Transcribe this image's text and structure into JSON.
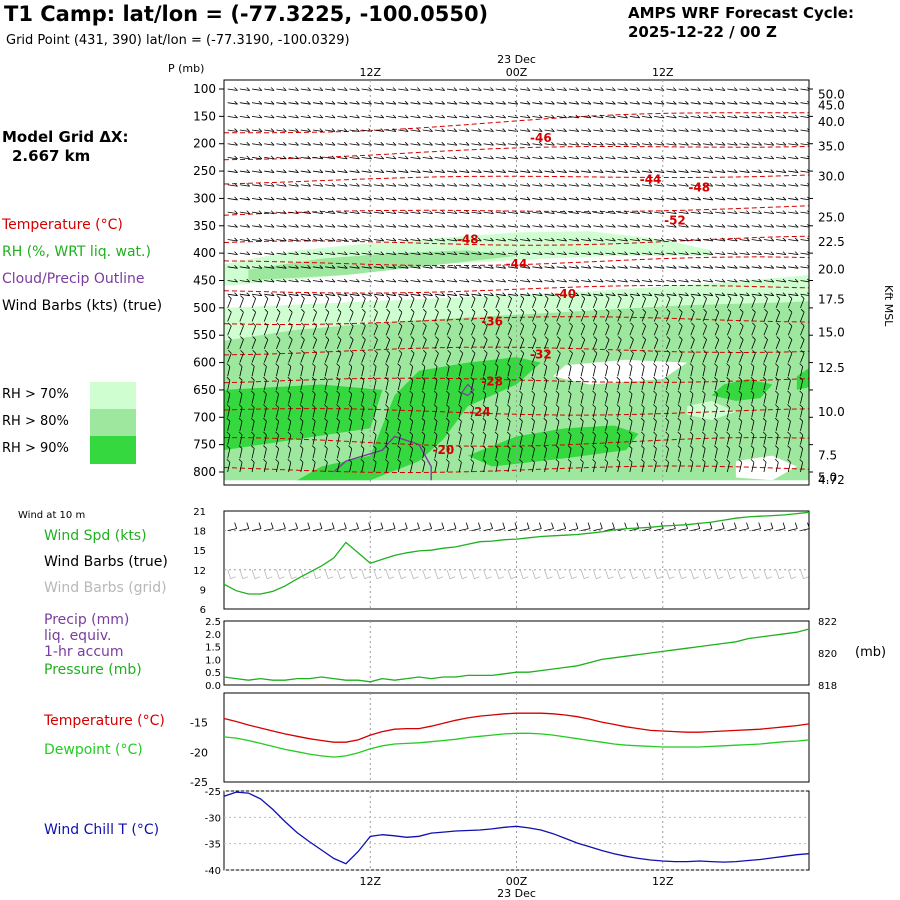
{
  "header": {
    "title": "T1 Camp:  lat/lon = (-77.3225, -100.0550)",
    "grid_point": "Grid Point (431, 390) lat/lon = (-77.3190, -100.0329)",
    "cycle_line1": "AMPS WRF Forecast Cycle:",
    "cycle_line2": "2025-12-22 / 00  Z",
    "model_grid_label": "Model Grid ΔX:",
    "model_grid_value": "2.667 km"
  },
  "legend": {
    "temperature": "Temperature (°C)",
    "rh": "RH (%, WRT liq. wat.)",
    "cloud": "Cloud/Precip Outline",
    "barbs": "Wind Barbs (kts) (true)",
    "rh_levels": [
      {
        "label": "RH > 70%",
        "color": "#cfffd0"
      },
      {
        "label": "RH > 80%",
        "color": "#9de89e"
      },
      {
        "label": "RH > 90%",
        "color": "#35d83f"
      }
    ]
  },
  "colors": {
    "temperature": "#d40000",
    "rh": "#1fb01f",
    "cloud": "#7a3c9e",
    "wind_chill": "#1010b0",
    "dewpoint": "#22cc22",
    "grid_barbs": "#b8b8b8"
  },
  "time_axis": {
    "date_label": "23 Dec",
    "ticks": [
      "12Z",
      "00Z",
      "12Z"
    ]
  },
  "chart_data": [
    {
      "type": "heatmap",
      "title": "Time-height cross section",
      "ylabel": "P (mb)",
      "right_label": "Kft MSL",
      "pressure_ticks": [
        100,
        150,
        200,
        250,
        300,
        350,
        400,
        450,
        500,
        550,
        600,
        650,
        700,
        750,
        800
      ],
      "height_ticks": [
        "50.0",
        "45.0",
        "40.0",
        "35.0",
        "30.0",
        "25.0",
        "22.5",
        "20.0",
        "17.5",
        "15.0",
        "12.5",
        "10.0",
        "7.5",
        "5.0",
        "4.72"
      ],
      "height_tick_pressures": [
        110,
        130,
        160,
        205,
        260,
        335,
        380,
        430,
        485,
        545,
        610,
        690,
        770,
        810,
        815
      ],
      "temperature_contour_labels": [
        {
          "value": "-46",
          "hour": 26,
          "p": 190
        },
        {
          "value": "-44",
          "hour": 35,
          "p": 265
        },
        {
          "value": "-48",
          "hour": 39,
          "p": 280
        },
        {
          "value": "-52",
          "hour": 37,
          "p": 340
        },
        {
          "value": "-48",
          "hour": 20,
          "p": 375
        },
        {
          "value": "-44",
          "hour": 24,
          "p": 420
        },
        {
          "value": "-40",
          "hour": 28,
          "p": 475
        },
        {
          "value": "-36",
          "hour": 22,
          "p": 525
        },
        {
          "value": "-32",
          "hour": 26,
          "p": 585
        },
        {
          "value": "-28",
          "hour": 22,
          "p": 635
        },
        {
          "value": "-24",
          "hour": 21,
          "p": 690
        },
        {
          "value": "-20",
          "hour": 18,
          "p": 760
        }
      ]
    },
    {
      "type": "line",
      "title": "Wind at 10 m",
      "labels": [
        "Wind Spd (kts)",
        "Wind Barbs (true)",
        "Wind Barbs (grid)"
      ],
      "ylim": [
        6,
        21
      ],
      "y_ticks": [
        6,
        9,
        12,
        15,
        18,
        21
      ],
      "x": [
        0,
        1,
        2,
        3,
        4,
        5,
        6,
        7,
        8,
        9,
        10,
        11,
        12,
        13,
        14,
        15,
        16,
        17,
        18,
        19,
        20,
        21,
        22,
        23,
        24,
        25,
        26,
        27,
        28,
        29,
        30,
        31,
        32,
        33,
        34,
        35,
        36,
        37,
        38,
        39,
        40,
        41,
        42,
        43,
        44,
        45,
        46,
        47,
        48
      ],
      "series": [
        {
          "name": "Wind Spd (kts)",
          "values": [
            9.8,
            8.8,
            8.3,
            8.3,
            8.7,
            9.5,
            10.6,
            11.6,
            12.6,
            13.8,
            16.2,
            14.6,
            13.0,
            13.6,
            14.2,
            14.6,
            14.9,
            15.0,
            15.3,
            15.5,
            15.9,
            16.3,
            16.4,
            16.6,
            16.7,
            16.9,
            17.1,
            17.2,
            17.3,
            17.4,
            17.6,
            17.8,
            18.1,
            18.3,
            18.4,
            18.5,
            18.7,
            18.8,
            18.9,
            19.1,
            19.3,
            19.6,
            19.9,
            20.1,
            20.2,
            20.3,
            20.4,
            20.6,
            20.8
          ]
        }
      ]
    },
    {
      "type": "line",
      "title": "Precip / Pressure",
      "labels": [
        "Precip (mm)",
        "liq. equiv.",
        "1-hr accum",
        "Pressure (mb)"
      ],
      "left_ylim": [
        0.0,
        2.5
      ],
      "left_ticks": [
        "0.0",
        "0.5",
        "1.0",
        "1.5",
        "2.0",
        "2.5"
      ],
      "right_ylim": [
        818,
        822
      ],
      "right_ticks": [
        "818",
        "820",
        "822"
      ],
      "right_unit": "(mb)",
      "x": [
        0,
        1,
        2,
        3,
        4,
        5,
        6,
        7,
        8,
        9,
        10,
        11,
        12,
        13,
        14,
        15,
        16,
        17,
        18,
        19,
        20,
        21,
        22,
        23,
        24,
        25,
        26,
        27,
        28,
        29,
        30,
        31,
        32,
        33,
        34,
        35,
        36,
        37,
        38,
        39,
        40,
        41,
        42,
        43,
        44,
        45,
        46,
        47,
        48
      ],
      "series": [
        {
          "name": "Pressure (mb)",
          "values": [
            818.5,
            818.4,
            818.3,
            818.4,
            818.3,
            818.3,
            818.4,
            818.4,
            818.5,
            818.4,
            818.3,
            818.3,
            818.2,
            818.4,
            818.3,
            818.4,
            818.5,
            818.4,
            818.5,
            818.5,
            818.6,
            818.6,
            818.6,
            818.7,
            818.8,
            818.8,
            818.9,
            819.0,
            819.1,
            819.2,
            819.4,
            819.6,
            819.7,
            819.8,
            819.9,
            820.0,
            820.1,
            820.2,
            820.3,
            820.4,
            820.5,
            820.6,
            820.7,
            820.9,
            821.0,
            821.1,
            821.2,
            821.3,
            821.5
          ]
        },
        {
          "name": "Precip (mm)",
          "values": [
            0,
            0,
            0,
            0,
            0,
            0,
            0,
            0,
            0,
            0,
            0,
            0,
            0,
            0,
            0,
            0,
            0,
            0,
            0,
            0,
            0,
            0,
            0,
            0,
            0,
            0,
            0,
            0,
            0,
            0,
            0,
            0,
            0,
            0,
            0,
            0,
            0,
            0,
            0,
            0,
            0,
            0,
            0,
            0,
            0,
            0,
            0,
            0,
            0
          ]
        }
      ]
    },
    {
      "type": "line",
      "title": "Temperature / Dewpoint",
      "labels": [
        "Temperature (°C)",
        "Dewpoint (°C)"
      ],
      "ylim": [
        -25,
        -10
      ],
      "y_ticks": [
        -25,
        -20,
        -15
      ],
      "x": [
        0,
        1,
        2,
        3,
        4,
        5,
        6,
        7,
        8,
        9,
        10,
        11,
        12,
        13,
        14,
        15,
        16,
        17,
        18,
        19,
        20,
        21,
        22,
        23,
        24,
        25,
        26,
        27,
        28,
        29,
        30,
        31,
        32,
        33,
        34,
        35,
        36,
        37,
        38,
        39,
        40,
        41,
        42,
        43,
        44,
        45,
        46,
        47,
        48
      ],
      "series": [
        {
          "name": "Temperature (°C)",
          "values": [
            -14.3,
            -14.8,
            -15.4,
            -15.9,
            -16.4,
            -16.9,
            -17.3,
            -17.7,
            -18.0,
            -18.3,
            -18.3,
            -17.9,
            -17.1,
            -16.5,
            -16.1,
            -16.0,
            -16.0,
            -15.6,
            -15.1,
            -14.6,
            -14.2,
            -13.9,
            -13.7,
            -13.5,
            -13.4,
            -13.4,
            -13.4,
            -13.5,
            -13.7,
            -14.0,
            -14.4,
            -14.9,
            -15.3,
            -15.7,
            -16.0,
            -16.3,
            -16.4,
            -16.5,
            -16.6,
            -16.6,
            -16.5,
            -16.4,
            -16.3,
            -16.2,
            -16.1,
            -15.9,
            -15.7,
            -15.5,
            -15.2
          ]
        },
        {
          "name": "Dewpoint (°C)",
          "values": [
            -17.4,
            -17.6,
            -18.0,
            -18.5,
            -19.0,
            -19.5,
            -19.9,
            -20.3,
            -20.6,
            -20.8,
            -20.6,
            -20.1,
            -19.4,
            -18.9,
            -18.6,
            -18.5,
            -18.4,
            -18.2,
            -18.0,
            -17.8,
            -17.5,
            -17.3,
            -17.1,
            -16.9,
            -16.8,
            -16.8,
            -16.9,
            -17.1,
            -17.4,
            -17.7,
            -18.0,
            -18.3,
            -18.6,
            -18.8,
            -18.9,
            -19.0,
            -19.1,
            -19.1,
            -19.1,
            -19.1,
            -19.0,
            -18.9,
            -18.8,
            -18.7,
            -18.6,
            -18.4,
            -18.2,
            -18.1,
            -17.9
          ]
        }
      ]
    },
    {
      "type": "line",
      "title": "Wind Chill",
      "labels": [
        "Wind Chill T (°C)"
      ],
      "ylim": [
        -40,
        -25
      ],
      "y_ticks": [
        -40,
        -35,
        -30,
        -25
      ],
      "x": [
        0,
        1,
        2,
        3,
        4,
        5,
        6,
        7,
        8,
        9,
        10,
        11,
        12,
        13,
        14,
        15,
        16,
        17,
        18,
        19,
        20,
        21,
        22,
        23,
        24,
        25,
        26,
        27,
        28,
        29,
        30,
        31,
        32,
        33,
        34,
        35,
        36,
        37,
        38,
        39,
        40,
        41,
        42,
        43,
        44,
        45,
        46,
        47,
        48
      ],
      "series": [
        {
          "name": "Wind Chill T (°C)",
          "values": [
            -26.0,
            -25.2,
            -25.4,
            -26.5,
            -28.5,
            -30.8,
            -32.9,
            -34.6,
            -36.2,
            -37.8,
            -38.8,
            -36.5,
            -33.6,
            -33.3,
            -33.5,
            -33.8,
            -33.6,
            -33.0,
            -32.8,
            -32.6,
            -32.5,
            -32.4,
            -32.2,
            -31.9,
            -31.7,
            -32.0,
            -32.4,
            -33.1,
            -34.0,
            -34.9,
            -35.6,
            -36.3,
            -36.9,
            -37.4,
            -37.8,
            -38.1,
            -38.3,
            -38.4,
            -38.4,
            -38.3,
            -38.4,
            -38.5,
            -38.4,
            -38.2,
            -38.0,
            -37.7,
            -37.4,
            -37.1,
            -36.9
          ]
        }
      ]
    }
  ]
}
